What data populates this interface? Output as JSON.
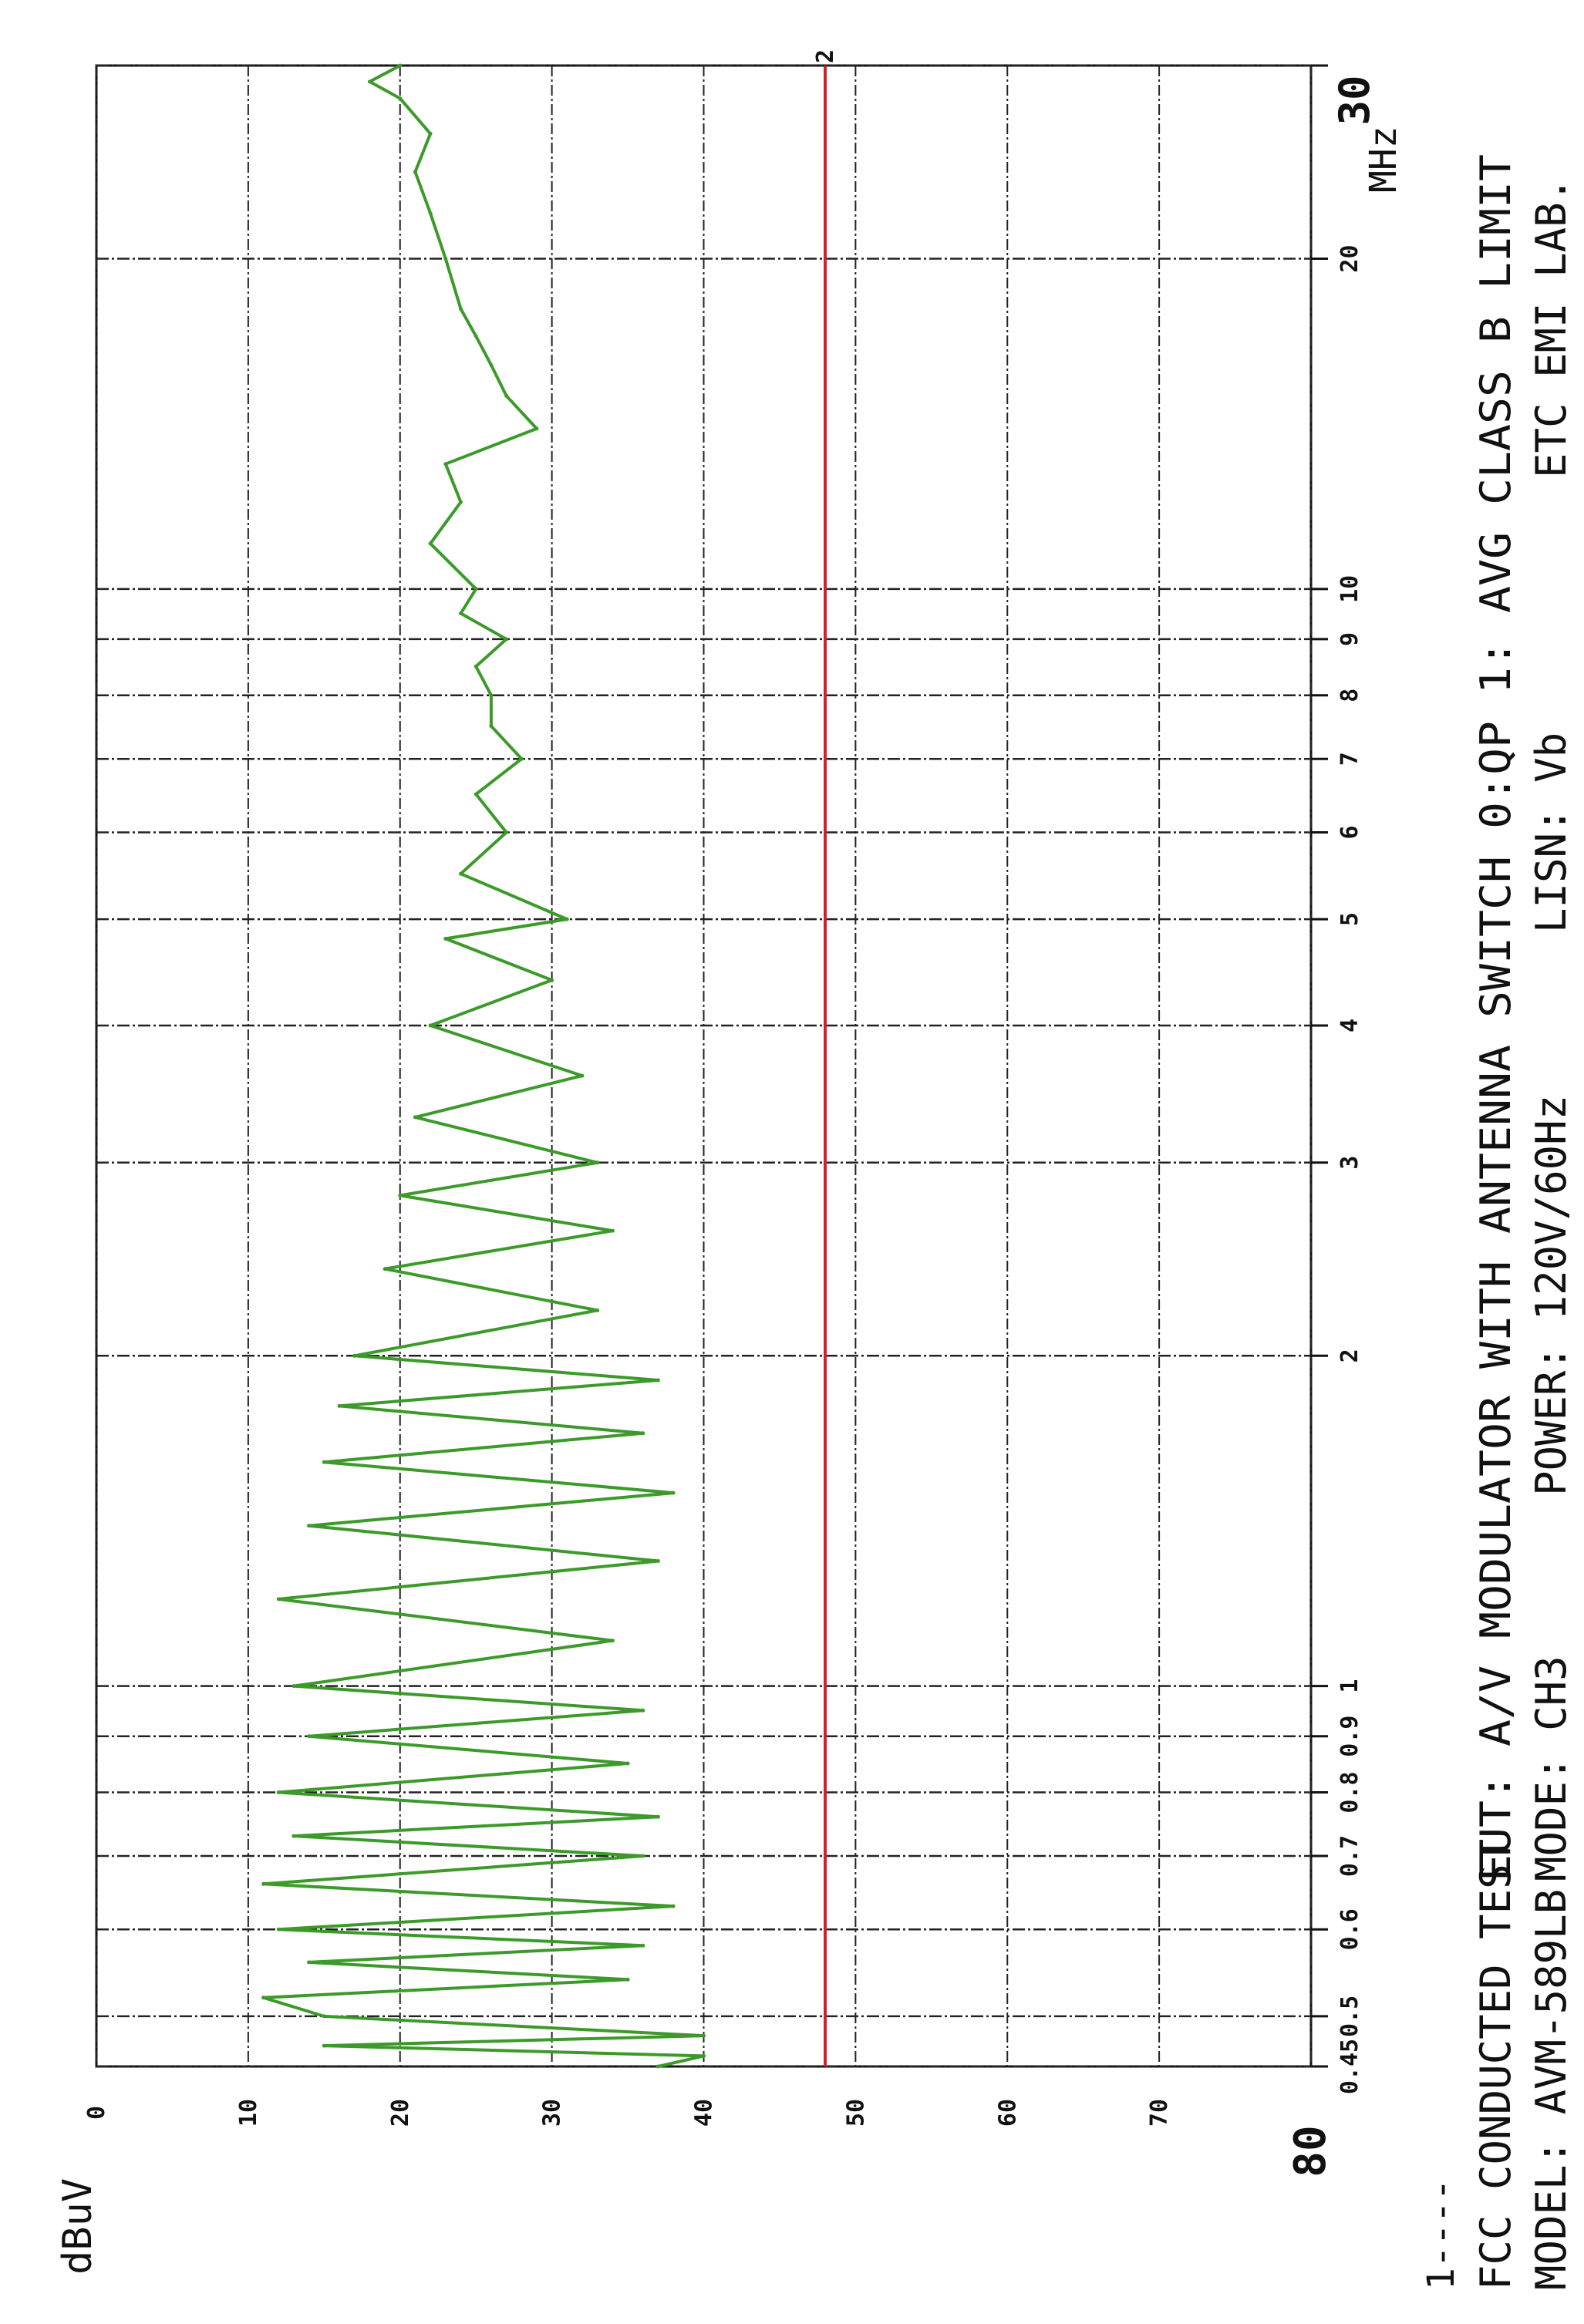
{
  "chart_data": {
    "type": "line",
    "ylabel": "dBuV",
    "xlabel": "MHz",
    "x_scale": "log",
    "xlim": [
      0.45,
      30
    ],
    "ylim": [
      0,
      80
    ],
    "grid": true,
    "x_ticks": [
      {
        "value": 0.45,
        "label": "0.45"
      },
      {
        "value": 0.5,
        "label": "0.5"
      },
      {
        "value": 0.6,
        "label": "0.6"
      },
      {
        "value": 0.7,
        "label": "0.7"
      },
      {
        "value": 0.8,
        "label": "0.8"
      },
      {
        "value": 0.9,
        "label": "0.9"
      },
      {
        "value": 1,
        "label": "1"
      },
      {
        "value": 2,
        "label": "2"
      },
      {
        "value": 3,
        "label": "3"
      },
      {
        "value": 4,
        "label": "4"
      },
      {
        "value": 5,
        "label": "5"
      },
      {
        "value": 6,
        "label": "6"
      },
      {
        "value": 7,
        "label": "7"
      },
      {
        "value": 8,
        "label": "8"
      },
      {
        "value": 9,
        "label": "9"
      },
      {
        "value": 10,
        "label": "10"
      },
      {
        "value": 20,
        "label": "20"
      },
      {
        "value": 30,
        "label": "30"
      }
    ],
    "y_ticks": [
      {
        "value": 0,
        "label": "0"
      },
      {
        "value": 10,
        "label": "10"
      },
      {
        "value": 20,
        "label": "20"
      },
      {
        "value": 30,
        "label": "30"
      },
      {
        "value": 40,
        "label": "40"
      },
      {
        "value": 50,
        "label": "50"
      },
      {
        "value": 60,
        "label": "60"
      },
      {
        "value": 70,
        "label": "70"
      },
      {
        "value": 80,
        "label": "80"
      }
    ],
    "limit_line": {
      "label": "2",
      "value": 48,
      "color": "#d0202a"
    },
    "series": [
      {
        "color": "#3c9a2a",
        "x": [
          0.45,
          0.46,
          0.47,
          0.48,
          0.5,
          0.52,
          0.54,
          0.56,
          0.58,
          0.6,
          0.63,
          0.66,
          0.7,
          0.73,
          0.76,
          0.8,
          0.85,
          0.9,
          0.95,
          1.0,
          1.1,
          1.2,
          1.3,
          1.4,
          1.5,
          1.6,
          1.7,
          1.8,
          1.9,
          2.0,
          2.2,
          2.4,
          2.6,
          2.8,
          3.0,
          3.3,
          3.6,
          4.0,
          4.4,
          4.8,
          5.0,
          5.5,
          6.0,
          6.5,
          7.0,
          7.5,
          8.0,
          8.5,
          9.0,
          9.5,
          10,
          11,
          12,
          13,
          14,
          15,
          16,
          17,
          18,
          20,
          22,
          24,
          26,
          28,
          29,
          30
        ],
        "y": [
          37,
          40,
          15,
          40,
          15,
          11,
          35,
          14,
          36,
          12,
          38,
          11,
          36,
          13,
          37,
          12,
          35,
          14,
          36,
          13,
          34,
          12,
          37,
          14,
          38,
          15,
          36,
          16,
          37,
          17,
          33,
          19,
          34,
          20,
          33,
          21,
          32,
          22,
          30,
          23,
          31,
          24,
          27,
          25,
          28,
          26,
          26,
          25,
          27,
          24,
          25,
          22,
          24,
          23,
          29,
          27,
          26,
          25,
          24,
          23,
          22,
          21,
          22,
          20,
          18,
          20
        ]
      }
    ]
  },
  "title_block": {
    "line_marker": "1----",
    "test_title": "FCC CONDUCTED TEST",
    "model": "MODEL: AVM-589LB",
    "eut": "EUT: A/V MODULATOR WITH ANTENNA SWITCH 0:QP  1: AVG CLASS B LIMIT",
    "mode": "MODE: CH3",
    "power": "POWER: 120V/60Hz",
    "lisn": "LISN: Vb",
    "lab": "ETC EMI LAB."
  }
}
